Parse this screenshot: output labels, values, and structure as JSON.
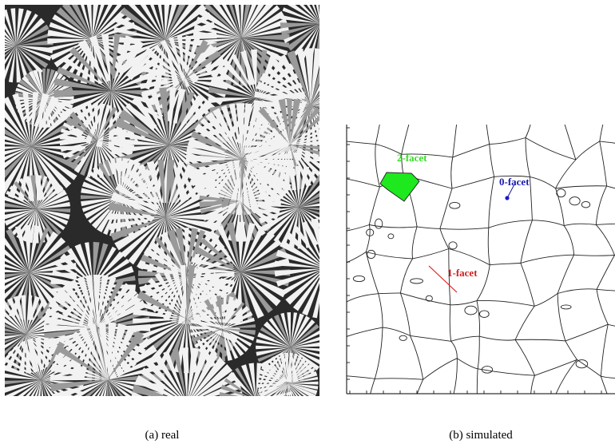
{
  "panels": [
    {
      "caption": "(a) real"
    },
    {
      "caption": "(b) simulated",
      "labels": [
        "2-facet",
        "0-facet",
        "1-facet"
      ]
    }
  ]
}
